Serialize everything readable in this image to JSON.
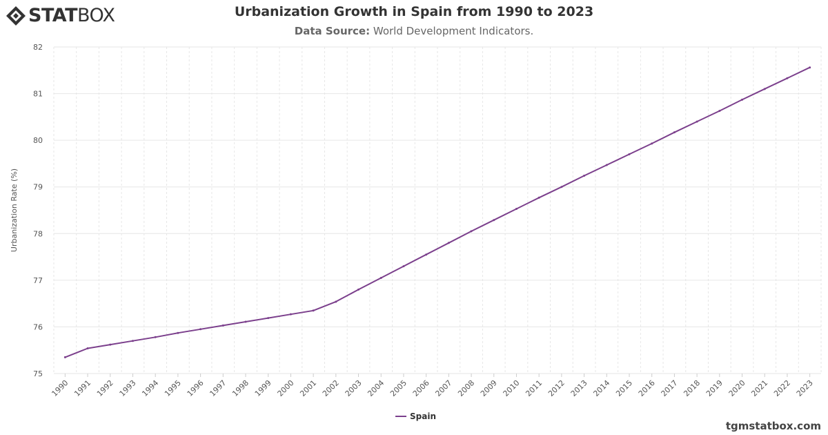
{
  "logo": {
    "text_bold": "STAT",
    "text_light": "BOX"
  },
  "header": {
    "title": "Urbanization Growth in Spain from 1990 to 2023",
    "source_label": "Data Source:",
    "source_value": "World Development Indicators."
  },
  "footer": {
    "site": "tgmstatbox.com"
  },
  "colors": {
    "series": "#7b3f8c",
    "grid": "#e6e6e6",
    "axis_text": "#555555"
  },
  "chart_data": {
    "type": "line",
    "title": "Urbanization Growth in Spain from 1990 to 2023",
    "xlabel": "",
    "ylabel": "Urbanization Rate (%)",
    "ylim": [
      75,
      82
    ],
    "yticks": [
      75,
      76,
      77,
      78,
      79,
      80,
      81,
      82
    ],
    "grid": true,
    "legend_position": "bottom-center",
    "x": [
      "1990",
      "1991",
      "1992",
      "1993",
      "1994",
      "1995",
      "1996",
      "1997",
      "1998",
      "1999",
      "2000",
      "2001",
      "2002",
      "2003",
      "2004",
      "2005",
      "2006",
      "2007",
      "2008",
      "2009",
      "2010",
      "2011",
      "2012",
      "2013",
      "2014",
      "2015",
      "2016",
      "2017",
      "2018",
      "2019",
      "2020",
      "2021",
      "2022",
      "2023"
    ],
    "series": [
      {
        "name": "Spain",
        "values": [
          75.35,
          75.54,
          75.62,
          75.7,
          75.78,
          75.87,
          75.95,
          76.03,
          76.11,
          76.19,
          76.27,
          76.35,
          76.54,
          76.8,
          77.05,
          77.3,
          77.55,
          77.8,
          78.05,
          78.29,
          78.53,
          78.77,
          79.0,
          79.24,
          79.47,
          79.7,
          79.93,
          80.17,
          80.4,
          80.63,
          80.87,
          81.1,
          81.33,
          81.56
        ]
      }
    ]
  }
}
